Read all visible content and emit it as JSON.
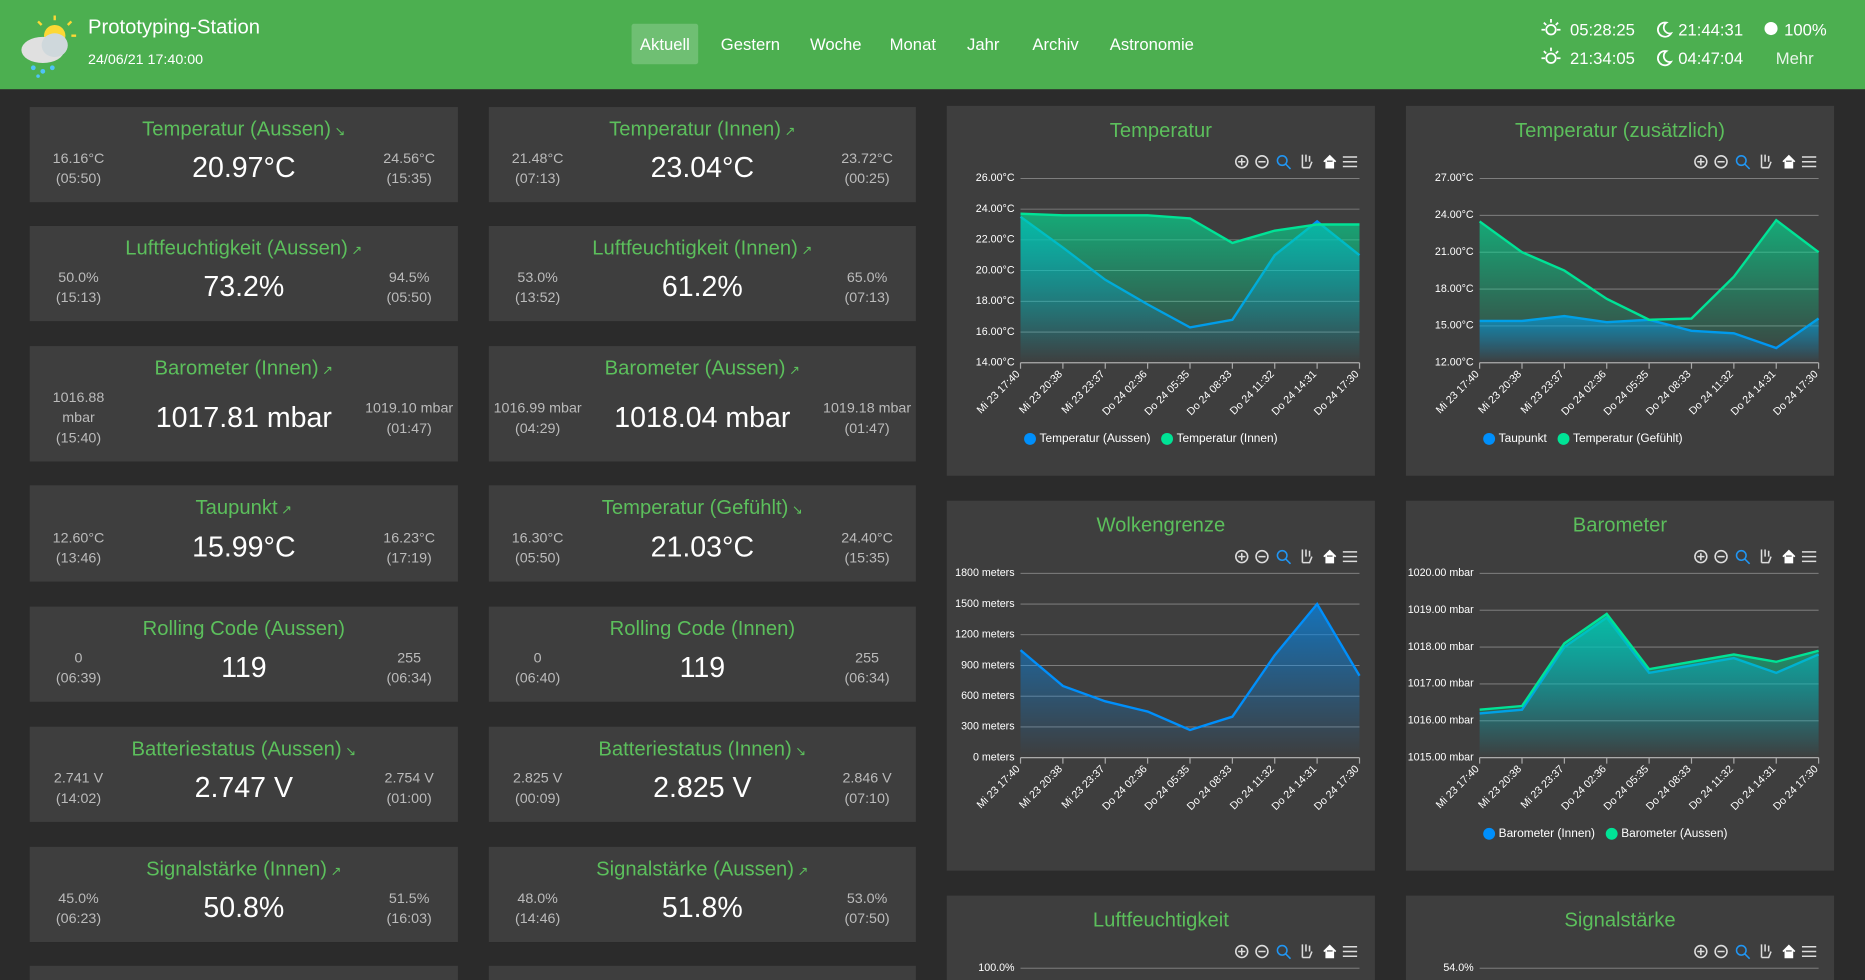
{
  "header": {
    "title": "Prototyping-Station",
    "datetime": "24/06/21 17:40:00",
    "nav": [
      {
        "label": "Aktuell",
        "active": true
      },
      {
        "label": "Gestern"
      },
      {
        "label": "Woche"
      },
      {
        "label": "Monat"
      },
      {
        "label": "Jahr"
      },
      {
        "label": "Archiv"
      },
      {
        "label": "Astronomie"
      }
    ],
    "astro": {
      "sunrise": "05:28:25",
      "moonrise": "21:44:31",
      "moon_phase": "100%",
      "sunset": "21:34:05",
      "moonset": "04:47:04",
      "more": "Mehr"
    }
  },
  "cards": [
    {
      "title": "Temperatur (Aussen)",
      "trend": "↘",
      "min": "16.16°C",
      "min_time": "(05:50)",
      "value": "20.97°C",
      "max": "24.56°C",
      "max_time": "(15:35)"
    },
    {
      "title": "Temperatur (Innen)",
      "trend": "↗",
      "min": "21.48°C",
      "min_time": "(07:13)",
      "value": "23.04°C",
      "max": "23.72°C",
      "max_time": "(00:25)"
    },
    {
      "title": "Luftfeuchtigkeit (Aussen)",
      "trend": "↗",
      "min": "50.0%",
      "min_time": "(15:13)",
      "value": "73.2%",
      "max": "94.5%",
      "max_time": "(05:50)"
    },
    {
      "title": "Luftfeuchtigkeit (Innen)",
      "trend": "↗",
      "min": "53.0%",
      "min_time": "(13:52)",
      "value": "61.2%",
      "max": "65.0%",
      "max_time": "(07:13)"
    },
    {
      "title": "Barometer (Innen)",
      "trend": "↗",
      "min": "1016.88 mbar",
      "min_time": "(15:40)",
      "value": "1017.81 mbar",
      "max": "1019.10 mbar",
      "max_time": "(01:47)"
    },
    {
      "title": "Barometer (Aussen)",
      "trend": "↗",
      "min": "1016.99 mbar",
      "min_time": "(04:29)",
      "value": "1018.04 mbar",
      "max": "1019.18 mbar",
      "max_time": "(01:47)"
    },
    {
      "title": "Taupunkt",
      "trend": "↗",
      "min": "12.60°C",
      "min_time": "(13:46)",
      "value": "15.99°C",
      "max": "16.23°C",
      "max_time": "(17:19)"
    },
    {
      "title": "Temperatur (Gefühlt)",
      "trend": "↘",
      "min": "16.30°C",
      "min_time": "(05:50)",
      "value": "21.03°C",
      "max": "24.40°C",
      "max_time": "(15:35)"
    },
    {
      "title": "Rolling Code (Aussen)",
      "min": "0",
      "min_time": "(06:39)",
      "value": "119",
      "max": "255",
      "max_time": "(06:34)"
    },
    {
      "title": "Rolling Code (Innen)",
      "min": "0",
      "min_time": "(06:40)",
      "value": "119",
      "max": "255",
      "max_time": "(06:34)"
    },
    {
      "title": "Batteriestatus (Aussen)",
      "trend": "↘",
      "min": "2.741 V",
      "min_time": "(14:02)",
      "value": "2.747 V",
      "max": "2.754 V",
      "max_time": "(01:00)"
    },
    {
      "title": "Batteriestatus (Innen)",
      "trend": "↘",
      "min": "2.825 V",
      "min_time": "(00:09)",
      "value": "2.825 V",
      "max": "2.846 V",
      "max_time": "(07:10)"
    },
    {
      "title": "Signalstärke (Innen)",
      "trend": "↗",
      "min": "45.0%",
      "min_time": "(06:23)",
      "value": "50.8%",
      "max": "51.5%",
      "max_time": "(16:03)"
    },
    {
      "title": "Signalstärke (Aussen)",
      "trend": "↗",
      "min": "48.0%",
      "min_time": "(14:46)",
      "value": "51.8%",
      "max": "53.0%",
      "max_time": "(07:50)"
    }
  ],
  "chart_data": [
    {
      "type": "line",
      "title": "Temperatur",
      "categories": [
        "Mi 23 17:40",
        "Mi 23 20:38",
        "Mi 23 23:37",
        "Do 24 02:36",
        "Do 24 05:35",
        "Do 24 08:33",
        "Do 24 11:32",
        "Do 24 14:31",
        "Do 24 17:30"
      ],
      "ylim": [
        14,
        26
      ],
      "yticks": [
        {
          "value": 14,
          "label": "14.00°C"
        },
        {
          "value": 16,
          "label": "16.00°C"
        },
        {
          "value": 18,
          "label": "18.00°C"
        },
        {
          "value": 20,
          "label": "20.00°C"
        },
        {
          "value": 22,
          "label": "22.00°C"
        },
        {
          "value": 24,
          "label": "24.00°C"
        },
        {
          "value": 26,
          "label": "26.00°C"
        }
      ],
      "grid": true,
      "series": [
        {
          "name": "Temperatur (Aussen)",
          "color": "#008ffb",
          "values": [
            23.5,
            21.5,
            19.4,
            17.8,
            16.3,
            16.8,
            21,
            23.2,
            21
          ]
        },
        {
          "name": "Temperatur (Innen)",
          "color": "#00e396",
          "values": [
            23.7,
            23.6,
            23.6,
            23.6,
            23.4,
            21.8,
            22.6,
            23,
            23
          ]
        }
      ]
    },
    {
      "type": "line",
      "title": "Temperatur (zusätzlich)",
      "categories": [
        "Mi 23 17:40",
        "Mi 23 20:38",
        "Mi 23 23:37",
        "Do 24 02:36",
        "Do 24 05:35",
        "Do 24 08:33",
        "Do 24 11:32",
        "Do 24 14:31",
        "Do 24 17:30"
      ],
      "ylim": [
        12,
        27
      ],
      "yticks": [
        {
          "value": 12,
          "label": "12.00°C"
        },
        {
          "value": 15,
          "label": "15.00°C"
        },
        {
          "value": 18,
          "label": "18.00°C"
        },
        {
          "value": 21,
          "label": "21.00°C"
        },
        {
          "value": 24,
          "label": "24.00°C"
        },
        {
          "value": 27,
          "label": "27.00°C"
        }
      ],
      "grid": true,
      "series": [
        {
          "name": "Taupunkt",
          "color": "#008ffb",
          "values": [
            15.4,
            15.4,
            15.8,
            15.3,
            15.5,
            14.6,
            14.4,
            13.2,
            15.6
          ]
        },
        {
          "name": "Temperatur (Gefühlt)",
          "color": "#00e396",
          "values": [
            23.5,
            21,
            19.5,
            17.2,
            15.5,
            15.6,
            19,
            23.6,
            21
          ]
        }
      ]
    },
    {
      "type": "line",
      "title": "Wolkengrenze",
      "categories": [
        "Mi 23 17:40",
        "Mi 23 20:38",
        "Mi 23 23:37",
        "Do 24 02:36",
        "Do 24 05:35",
        "Do 24 08:33",
        "Do 24 11:32",
        "Do 24 14:31",
        "Do 24 17:30"
      ],
      "ylim": [
        0,
        1800
      ],
      "yticks": [
        {
          "value": 0,
          "label": "0 meters"
        },
        {
          "value": 300,
          "label": "300 meters"
        },
        {
          "value": 600,
          "label": "600 meters"
        },
        {
          "value": 900,
          "label": "900 meters"
        },
        {
          "value": 1200,
          "label": "1200 meters"
        },
        {
          "value": 1500,
          "label": "1500 meters"
        },
        {
          "value": 1800,
          "label": "1800 meters"
        }
      ],
      "grid": true,
      "series": [
        {
          "color": "#008ffb",
          "values": [
            1050,
            700,
            550,
            450,
            270,
            400,
            1000,
            1500,
            800
          ]
        }
      ]
    },
    {
      "type": "line",
      "title": "Barometer",
      "categories": [
        "Mi 23 17:40",
        "Mi 23 20:38",
        "Mi 23 23:37",
        "Do 24 02:36",
        "Do 24 05:35",
        "Do 24 08:33",
        "Do 24 11:32",
        "Do 24 14:31",
        "Do 24 17:30"
      ],
      "ylim": [
        1015,
        1020
      ],
      "yticks": [
        {
          "value": 1015,
          "label": "1015.00 mbar"
        },
        {
          "value": 1016,
          "label": "1016.00 mbar"
        },
        {
          "value": 1017,
          "label": "1017.00 mbar"
        },
        {
          "value": 1018,
          "label": "1018.00 mbar"
        },
        {
          "value": 1019,
          "label": "1019.00 mbar"
        },
        {
          "value": 1020,
          "label": "1020.00 mbar"
        }
      ],
      "grid": true,
      "series": [
        {
          "name": "Barometer (Innen)",
          "color": "#008ffb",
          "values": [
            1016.2,
            1016.3,
            1018,
            1018.8,
            1017.3,
            1017.5,
            1017.7,
            1017.3,
            1017.8
          ]
        },
        {
          "name": "Barometer (Aussen)",
          "color": "#00e396",
          "values": [
            1016.3,
            1016.4,
            1018.1,
            1018.9,
            1017.4,
            1017.6,
            1017.8,
            1017.6,
            1017.9
          ]
        }
      ]
    },
    {
      "type": "partial",
      "title": "Luftfeuchtigkeit",
      "yticks": [
        {
          "value": 100,
          "label": "100.0%"
        }
      ]
    },
    {
      "type": "partial",
      "title": "Signalstärke",
      "yticks": [
        {
          "value": 54,
          "label": "54.0%"
        }
      ]
    }
  ]
}
